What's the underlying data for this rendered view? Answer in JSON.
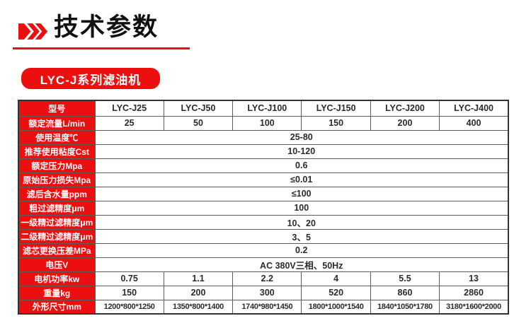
{
  "header": {
    "title": "技术参数",
    "chevrons_icon": "triple-right-chevrons-icon"
  },
  "badge": {
    "label": "LYC-J系列滤油机"
  },
  "colors": {
    "accent_red": "#ed0f0f",
    "table_border": "#5c5c5c",
    "table_outer_border": "#333333",
    "data_text": "#2b2b2b",
    "title_text": "#111111"
  },
  "table": {
    "header_row": {
      "label": "型号",
      "models": [
        "LYC-J25",
        "LYC-J50",
        "LYC-J100",
        "LYC-J150",
        "LYC-J200",
        "LYC-J400"
      ]
    },
    "rows": [
      {
        "label": "额定流量L/min",
        "values": [
          "25",
          "50",
          "100",
          "150",
          "200",
          "400"
        ]
      },
      {
        "label": "使用温度℃",
        "value": "25-80"
      },
      {
        "label": "推荐使用粘度Cst",
        "value": "10-120"
      },
      {
        "label": "额定压力Mpa",
        "value": "0.6"
      },
      {
        "label": "原始压力损失Mpa",
        "value": "≤0.01"
      },
      {
        "label": "滤后含水量ppm",
        "value": "≤100"
      },
      {
        "label": "粗过滤精度μm",
        "value": "100"
      },
      {
        "label": "一级精过滤精度μm",
        "value": "10、20"
      },
      {
        "label": "二级精过滤精度μm",
        "value": "3、5"
      },
      {
        "label": "滤芯更换压差MPa",
        "value": "0.2"
      },
      {
        "label": "电压V",
        "value": "AC 380V三相、50Hz"
      },
      {
        "label": "电机功率kw",
        "values": [
          "0.75",
          "1.1",
          "2.2",
          "4",
          "5.5",
          "13"
        ]
      },
      {
        "label": "重量kg",
        "values": [
          "150",
          "200",
          "300",
          "520",
          "860",
          "2860"
        ]
      },
      {
        "label": "外形尺寸mm",
        "values": [
          "1200*800*1250",
          "1350*800*1400",
          "1740*980*1450",
          "1800*1000*1540",
          "1840*1050*1780",
          "3180*1600*2000"
        ]
      }
    ]
  }
}
